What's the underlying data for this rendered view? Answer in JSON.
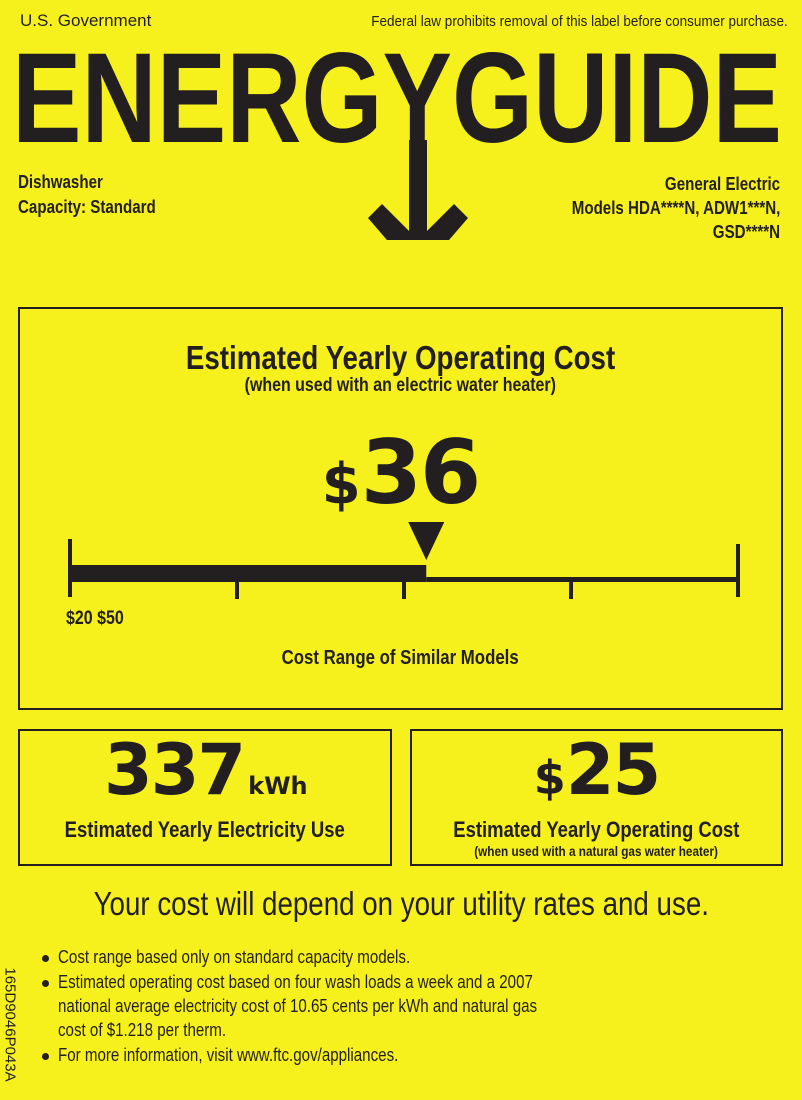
{
  "header": {
    "issuer": "U.S. Government",
    "notice": "Federal law prohibits removal of this label before consumer purchase.",
    "logo_text": "ENERGYGUIDE"
  },
  "product": {
    "type": "Dishwasher",
    "capacity": "Capacity: Standard",
    "brand": "General Electric",
    "models_line1": "Models  HDA****N, ADW1***N,",
    "models_line2": "GSD****N"
  },
  "main_cost": {
    "title": "Estimated Yearly Operating Cost",
    "subtitle": "(when used with an electric water heater)",
    "currency": "$",
    "amount": "36",
    "range_labels": "$20 $50",
    "range_caption": "Cost Range of Similar Models",
    "scale": {
      "min": 20,
      "max": 50,
      "value": 36,
      "ticks": 5
    }
  },
  "electricity": {
    "amount": "337",
    "unit": "kWh",
    "caption": "Estimated Yearly Electricity Use"
  },
  "gas_cost": {
    "currency": "$",
    "amount": "25",
    "caption": "Estimated Yearly Operating Cost",
    "subcaption": "(when used with a natural gas water heater)"
  },
  "disclaimer": "Your cost will depend on your utility rates and use.",
  "notes": [
    "Cost range based only on standard capacity models.",
    "Estimated operating cost based on four wash loads a week and a 2007",
    "national average electricity cost of 10.65 cents per kWh and natural gas",
    "cost of $1.218 per therm.",
    "For more information, visit www.ftc.gov/appliances."
  ],
  "label_code": "165D9046P043A",
  "colors": {
    "background": "#f6f01c",
    "ink": "#231f20"
  }
}
